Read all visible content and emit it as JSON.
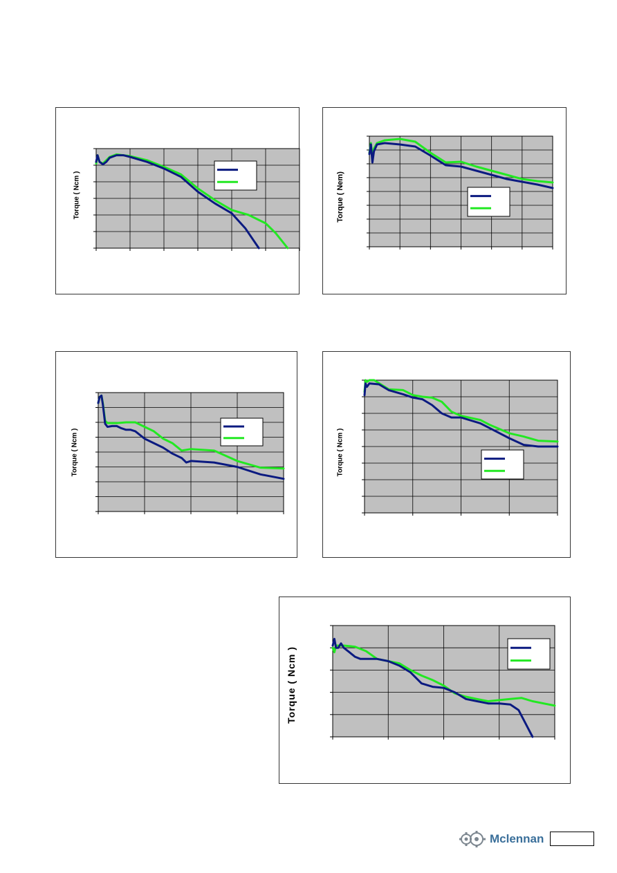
{
  "colors": {
    "plot_background": "#c0c0c0",
    "grid": "#000000",
    "series_a": "#0b1a80",
    "series_b": "#22e822"
  },
  "page": {
    "logo_text": "Mclennan",
    "page_number": ""
  },
  "chart_data": [
    {
      "type": "line",
      "ylabel": "Torque ( Ncm )",
      "xlim": [
        0,
        6
      ],
      "ylim": [
        0,
        6
      ],
      "grid": true,
      "legend": "right",
      "series": [
        {
          "x": [
            0,
            0.04,
            0.1,
            0.2,
            0.3,
            0.4,
            0.6,
            0.8,
            1,
            1.5,
            2,
            2.5,
            3,
            3.5,
            4,
            4.4,
            4.8
          ],
          "values": [
            5.2,
            5.6,
            5.2,
            5.05,
            5.2,
            5.45,
            5.6,
            5.6,
            5.5,
            5.2,
            4.8,
            4.3,
            3.4,
            2.7,
            2.1,
            1.2,
            0
          ]
        },
        {
          "x": [
            0,
            0.04,
            0.1,
            0.2,
            0.3,
            0.4,
            0.6,
            0.8,
            1,
            1.5,
            2,
            2.5,
            3,
            3.5,
            4,
            4.5,
            5,
            5.3,
            5.65
          ],
          "values": [
            5.1,
            5.6,
            5.2,
            5.1,
            5.3,
            5.5,
            5.65,
            5.6,
            5.55,
            5.3,
            4.9,
            4.45,
            3.6,
            2.9,
            2.3,
            2.0,
            1.5,
            0.9,
            0
          ]
        }
      ]
    },
    {
      "type": "line",
      "ylabel": "Torque ( Nem)",
      "xlim": [
        0,
        6
      ],
      "ylim": [
        0,
        8
      ],
      "grid": true,
      "legend": "center-right",
      "series": [
        {
          "x": [
            0,
            0.05,
            0.1,
            0.15,
            0.25,
            0.5,
            1,
            1.5,
            2,
            2.5,
            3,
            3.5,
            4,
            4.5,
            5,
            5.5,
            6
          ],
          "values": [
            6.7,
            7.4,
            6.1,
            6.9,
            7.4,
            7.5,
            7.4,
            7.25,
            6.6,
            5.9,
            5.8,
            5.5,
            5.2,
            4.9,
            4.7,
            4.5,
            4.25
          ]
        },
        {
          "x": [
            0,
            0.05,
            0.1,
            0.15,
            0.25,
            0.5,
            1,
            1.5,
            2,
            2.5,
            3,
            3.5,
            4,
            4.5,
            5,
            5.5,
            6
          ],
          "values": [
            6.8,
            7.5,
            6.5,
            7.1,
            7.5,
            7.7,
            7.8,
            7.6,
            6.8,
            6.1,
            6.15,
            5.8,
            5.5,
            5.2,
            4.9,
            4.75,
            4.65
          ]
        }
      ]
    },
    {
      "type": "line",
      "ylabel": "Torque ( Ncm )",
      "xlim": [
        0,
        4
      ],
      "ylim": [
        0,
        8
      ],
      "grid": true,
      "legend": "right",
      "series": [
        {
          "x": [
            0,
            0.03,
            0.07,
            0.1,
            0.15,
            0.2,
            0.3,
            0.4,
            0.5,
            0.6,
            0.7,
            0.8,
            1.0,
            1.2,
            1.4,
            1.6,
            1.8,
            1.9,
            2.0,
            2.5,
            3.0,
            3.5,
            4.0
          ],
          "values": [
            7.3,
            7.7,
            7.8,
            7.2,
            5.9,
            5.7,
            5.75,
            5.75,
            5.6,
            5.5,
            5.5,
            5.4,
            4.9,
            4.6,
            4.3,
            3.9,
            3.6,
            3.3,
            3.4,
            3.3,
            3.0,
            2.5,
            2.2
          ]
        },
        {
          "x": [
            0,
            0.03,
            0.07,
            0.1,
            0.15,
            0.2,
            0.4,
            0.6,
            0.8,
            1.0,
            1.2,
            1.4,
            1.6,
            1.8,
            2.0,
            2.5,
            3.0,
            3.5,
            4.0
          ],
          "values": [
            7.3,
            7.7,
            7.8,
            7.3,
            6.1,
            5.95,
            5.95,
            6.0,
            6.0,
            5.7,
            5.4,
            4.9,
            4.6,
            4.1,
            4.2,
            4.1,
            3.4,
            2.95,
            2.9
          ]
        }
      ]
    },
    {
      "type": "line",
      "ylabel": "Torque ( Ncm )",
      "xlim": [
        0,
        4
      ],
      "ylim": [
        0,
        8
      ],
      "grid": true,
      "legend": "center",
      "series": [
        {
          "x": [
            0,
            0.02,
            0.05,
            0.1,
            0.3,
            0.5,
            0.8,
            1.0,
            1.2,
            1.4,
            1.6,
            1.8,
            2.0,
            2.4,
            2.6,
            3.0,
            3.3,
            3.6,
            4.0
          ],
          "values": [
            7.1,
            7.8,
            7.6,
            7.8,
            7.75,
            7.4,
            7.15,
            6.95,
            6.85,
            6.5,
            6.0,
            5.75,
            5.75,
            5.4,
            5.1,
            4.5,
            4.1,
            4.0,
            4.0
          ]
        },
        {
          "x": [
            0,
            0.02,
            0.05,
            0.1,
            0.2,
            0.5,
            0.8,
            1.0,
            1.2,
            1.4,
            1.6,
            1.8,
            2.0,
            2.4,
            2.6,
            3.0,
            3.3,
            3.6,
            4.0
          ],
          "values": [
            7.3,
            8.0,
            7.9,
            8.0,
            8.0,
            7.45,
            7.4,
            7.1,
            7.0,
            6.95,
            6.7,
            6.1,
            5.85,
            5.6,
            5.3,
            4.8,
            4.6,
            4.35,
            4.3
          ]
        }
      ]
    },
    {
      "type": "line",
      "ylabel": "Torque ( Ncm )",
      "xlim": [
        0,
        4
      ],
      "ylim": [
        0,
        5
      ],
      "grid": true,
      "legend": "top-right",
      "series": [
        {
          "x": [
            0,
            0.03,
            0.06,
            0.1,
            0.15,
            0.2,
            0.3,
            0.4,
            0.5,
            0.8,
            1.0,
            1.2,
            1.4,
            1.6,
            1.8,
            2.0,
            2.2,
            2.4,
            2.6,
            2.8,
            3.0,
            3.2,
            3.35,
            3.6
          ],
          "values": [
            4.1,
            4.4,
            4.0,
            4.0,
            4.2,
            4.0,
            3.8,
            3.6,
            3.5,
            3.5,
            3.4,
            3.2,
            2.9,
            2.4,
            2.25,
            2.2,
            2.0,
            1.7,
            1.6,
            1.5,
            1.5,
            1.45,
            1.2,
            0
          ]
        },
        {
          "x": [
            0,
            0.03,
            0.06,
            0.1,
            0.2,
            0.4,
            0.6,
            0.8,
            1.0,
            1.2,
            1.4,
            1.6,
            1.8,
            2.0,
            2.2,
            2.4,
            2.6,
            2.8,
            3.0,
            3.2,
            3.4,
            3.6,
            4.0
          ],
          "values": [
            4.0,
            3.8,
            4.1,
            4.1,
            4.1,
            4.05,
            3.85,
            3.5,
            3.4,
            3.3,
            3.0,
            2.75,
            2.55,
            2.3,
            1.95,
            1.8,
            1.7,
            1.6,
            1.65,
            1.7,
            1.75,
            1.6,
            1.4
          ]
        }
      ]
    }
  ]
}
